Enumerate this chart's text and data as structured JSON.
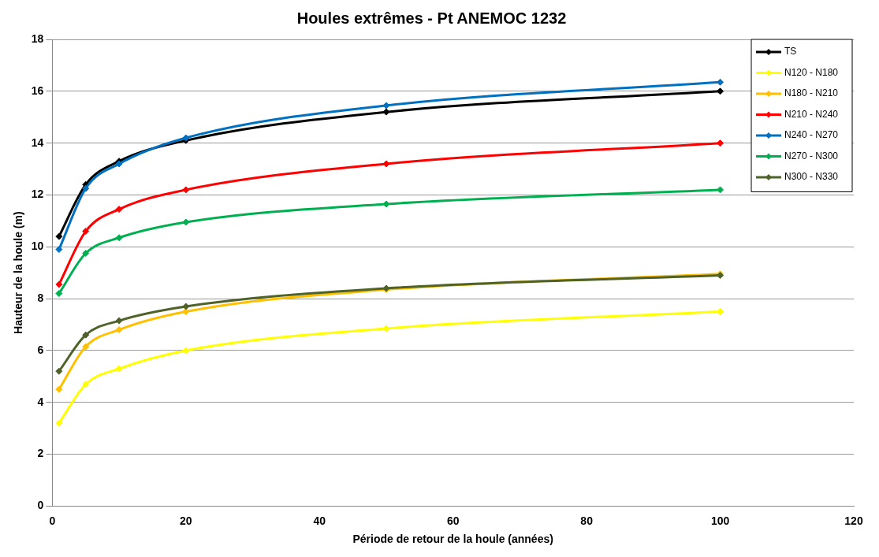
{
  "chart_data": {
    "type": "line",
    "title": "Houles extrêmes - Pt ANEMOC 1232",
    "xlabel": "Période de retour de la houle (années)",
    "ylabel": "Hauteur de la houle (m)",
    "x": [
      1,
      5,
      10,
      20,
      50,
      100
    ],
    "series": [
      {
        "name": "TS",
        "color": "#000000",
        "values": [
          10.4,
          12.4,
          13.3,
          14.1,
          15.2,
          16.0
        ]
      },
      {
        "name": "N120 - N180",
        "color": "#ffff00",
        "values": [
          3.2,
          4.7,
          5.3,
          6.0,
          6.85,
          7.5
        ]
      },
      {
        "name": "N180 - N210",
        "color": "#ffc000",
        "values": [
          4.5,
          6.15,
          6.8,
          7.5,
          8.35,
          8.95
        ]
      },
      {
        "name": "N210 - N240",
        "color": "#ff0000",
        "values": [
          8.55,
          10.6,
          11.45,
          12.2,
          13.2,
          14.0
        ]
      },
      {
        "name": "N240 - N270",
        "color": "#0070c0",
        "values": [
          9.9,
          12.25,
          13.2,
          14.2,
          15.45,
          16.35
        ]
      },
      {
        "name": "N270 - N300",
        "color": "#00b050",
        "values": [
          8.2,
          9.75,
          10.35,
          10.95,
          11.65,
          12.2
        ]
      },
      {
        "name": "N300 - N330",
        "color": "#4f6228",
        "values": [
          5.2,
          6.6,
          7.15,
          7.7,
          8.4,
          8.9
        ]
      }
    ],
    "xlim": [
      0,
      120
    ],
    "xticks": [
      0,
      20,
      40,
      60,
      80,
      100,
      120
    ],
    "ylim": [
      0,
      18
    ],
    "yticks": [
      0,
      2,
      4,
      6,
      8,
      10,
      12,
      14,
      16,
      18
    ],
    "grid": "y",
    "legend": "top right",
    "marker": "diamond",
    "line_style": "solid"
  }
}
